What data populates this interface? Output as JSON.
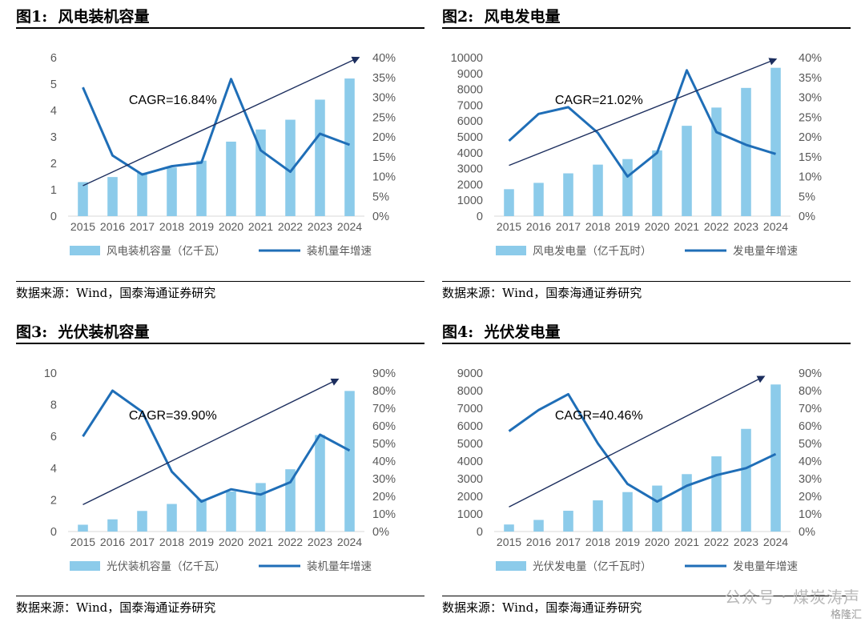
{
  "panels": [
    {
      "fig_label": "图1:",
      "title": "风电装机容量",
      "source": "数据来源：Wind，国泰海通证券研究",
      "chart_data": {
        "type": "bar+line",
        "categories": [
          "2015",
          "2016",
          "2017",
          "2018",
          "2019",
          "2020",
          "2021",
          "2022",
          "2023",
          "2024"
        ],
        "bars": {
          "name": "风电装机容量（亿千瓦）",
          "values": [
            1.29,
            1.48,
            1.64,
            1.84,
            2.1,
            2.82,
            3.28,
            3.65,
            4.41,
            5.21
          ]
        },
        "line": {
          "name": "装机量年增速",
          "values": [
            32.5,
            15.3,
            10.5,
            12.6,
            13.5,
            34.6,
            16.6,
            11.2,
            20.8,
            18.0
          ]
        },
        "y_left": {
          "min": 0,
          "max": 6,
          "step": 1,
          "ticks": [
            "0",
            "1",
            "2",
            "3",
            "4",
            "5",
            "6"
          ]
        },
        "y_right": {
          "min": 0,
          "max": 40,
          "step": 5,
          "ticks": [
            "0%",
            "5%",
            "10%",
            "15%",
            "20%",
            "25%",
            "30%",
            "35%",
            "40%"
          ]
        },
        "annotation": "CAGR=16.84%",
        "trend_arrow": {
          "from": [
            0,
            1.15
          ],
          "to": [
            9.3,
            6.0
          ]
        }
      }
    },
    {
      "fig_label": "图2:",
      "title": "风电发电量",
      "source": "数据来源：Wind，国泰海通证券研究",
      "chart_data": {
        "type": "bar+line",
        "categories": [
          "2015",
          "2016",
          "2017",
          "2018",
          "2019",
          "2020",
          "2021",
          "2022",
          "2023",
          "2024"
        ],
        "bars": {
          "name": "风电发电量（亿千瓦时）",
          "values": [
            1700,
            2100,
            2700,
            3250,
            3600,
            4150,
            5700,
            6850,
            8090,
            9360
          ]
        },
        "line": {
          "name": "发电量年增速",
          "values": [
            19,
            25.8,
            27.5,
            21.0,
            10.0,
            16.0,
            36.8,
            21.2,
            18.0,
            15.7
          ]
        },
        "y_left": {
          "min": 0,
          "max": 10000,
          "step": 1000,
          "ticks": [
            "0",
            "1000",
            "2000",
            "3000",
            "4000",
            "5000",
            "6000",
            "7000",
            "8000",
            "9000",
            "10000"
          ]
        },
        "y_right": {
          "min": 0,
          "max": 40,
          "step": 5,
          "ticks": [
            "0%",
            "5%",
            "10%",
            "15%",
            "20%",
            "25%",
            "30%",
            "35%",
            "40%"
          ]
        },
        "annotation": "CAGR=21.02%",
        "trend_arrow": {
          "from": [
            0,
            3200
          ],
          "to": [
            9.0,
            9900
          ]
        }
      }
    },
    {
      "fig_label": "图3:",
      "title": "光伏装机容量",
      "source": "数据来源：Wind，国泰海通证券研究",
      "chart_data": {
        "type": "bar+line",
        "categories": [
          "2015",
          "2016",
          "2017",
          "2018",
          "2019",
          "2020",
          "2021",
          "2022",
          "2023",
          "2024"
        ],
        "bars": {
          "name": "光伏装机容量（亿千瓦）",
          "values": [
            0.43,
            0.77,
            1.3,
            1.74,
            2.04,
            2.53,
            3.06,
            3.93,
            6.09,
            8.87
          ]
        },
        "line": {
          "name": "装机量年增速",
          "values": [
            54,
            80,
            68,
            34,
            17,
            24,
            21,
            28,
            55,
            46
          ]
        },
        "y_left": {
          "min": 0,
          "max": 10,
          "step": 2,
          "ticks": [
            "0",
            "2",
            "4",
            "6",
            "8",
            "10"
          ]
        },
        "y_right": {
          "min": 0,
          "max": 90,
          "step": 10,
          "ticks": [
            "0%",
            "10%",
            "20%",
            "30%",
            "40%",
            "50%",
            "60%",
            "70%",
            "80%",
            "90%"
          ]
        },
        "annotation": "CAGR=39.90%",
        "trend_arrow": {
          "from": [
            0,
            1.7
          ],
          "to": [
            8.6,
            9.6
          ]
        }
      }
    },
    {
      "fig_label": "图4:",
      "title": "光伏发电量",
      "source": "数据来源：Wind，国泰海通证券研究",
      "chart_data": {
        "type": "bar+line",
        "categories": [
          "2015",
          "2016",
          "2017",
          "2018",
          "2019",
          "2020",
          "2021",
          "2022",
          "2023",
          "2024"
        ],
        "bars": {
          "name": "光伏发电量（亿千瓦时）",
          "values": [
            400,
            660,
            1180,
            1770,
            2240,
            2610,
            3260,
            4270,
            5830,
            8350
          ]
        },
        "line": {
          "name": "发电量年增速",
          "values": [
            57,
            69,
            78,
            50,
            27,
            17,
            26,
            32,
            36,
            44
          ]
        },
        "y_left": {
          "min": 0,
          "max": 9000,
          "step": 1000,
          "ticks": [
            "0",
            "1000",
            "2000",
            "3000",
            "4000",
            "5000",
            "6000",
            "7000",
            "8000",
            "9000"
          ]
        },
        "y_right": {
          "min": 0,
          "max": 90,
          "step": 10,
          "ticks": [
            "0%",
            "10%",
            "20%",
            "30%",
            "40%",
            "50%",
            "60%",
            "70%",
            "80%",
            "90%"
          ]
        },
        "annotation": "CAGR=40.46%",
        "trend_arrow": {
          "from": [
            0,
            1400
          ],
          "to": [
            8.6,
            8800
          ]
        }
      }
    }
  ],
  "colors": {
    "bar": "#8ccbea",
    "line": "#1f6eb7",
    "arrow": "#1c2e5e",
    "axis": "#d9d9d9",
    "text": "#595959"
  },
  "watermark": {
    "text": "公众号 · 煤炭涛声",
    "sub": "格隆汇"
  }
}
